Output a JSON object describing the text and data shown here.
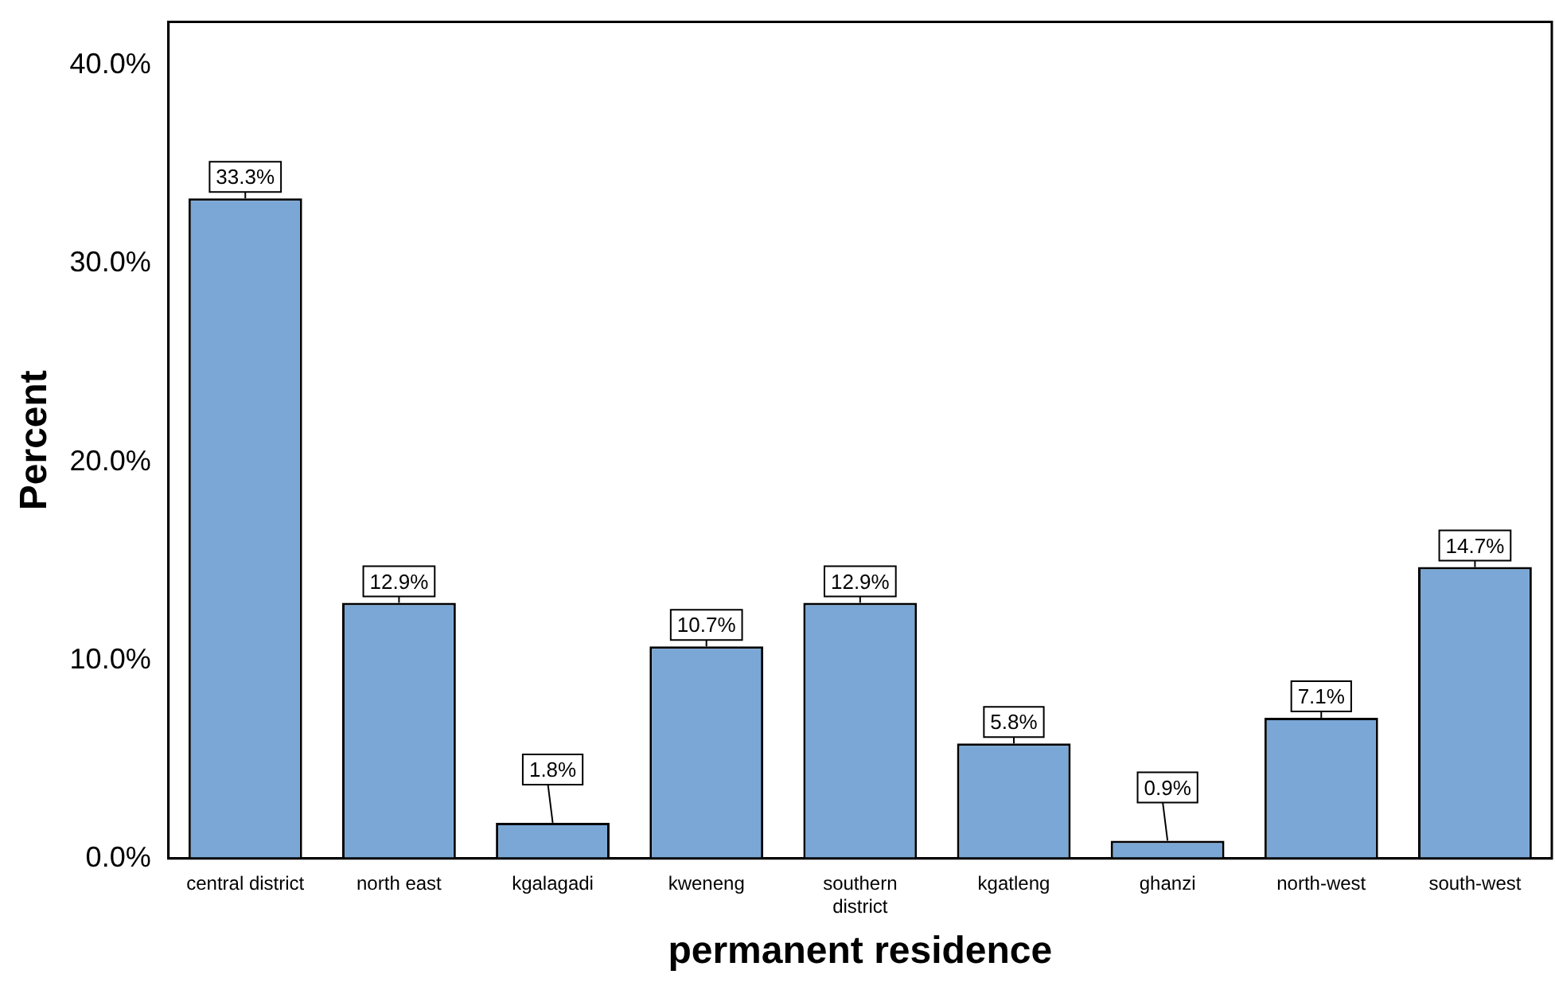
{
  "chart_data": {
    "type": "bar",
    "xlabel": "permanent residence",
    "ylabel": "Percent",
    "categories": [
      "central district",
      "north east",
      "kgalagadi",
      "kweneng",
      "southern district",
      "kgatleng",
      "ghanzi",
      "north-west",
      "south-west"
    ],
    "values": [
      33.3,
      12.9,
      1.8,
      10.7,
      12.9,
      5.8,
      0.9,
      7.1,
      14.7
    ],
    "value_labels": [
      "33.3%",
      "12.9%",
      "1.8%",
      "10.7%",
      "12.9%",
      "5.8%",
      "0.9%",
      "7.1%",
      "14.7%"
    ],
    "color": "#7aa7d6",
    "ylim": [
      0,
      42.2
    ],
    "yticks": [
      {
        "value": 0,
        "label": "0.0%"
      },
      {
        "value": 10,
        "label": "10.0%"
      },
      {
        "value": 20,
        "label": "20.0%"
      },
      {
        "value": 30,
        "label": "30.0%"
      },
      {
        "value": 40,
        "label": "40.0%"
      }
    ],
    "grid": false,
    "legend": false
  }
}
